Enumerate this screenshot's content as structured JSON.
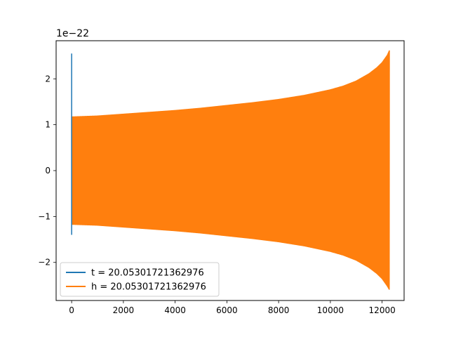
{
  "chart_data": {
    "type": "line",
    "title": "",
    "xlabel": "",
    "ylabel": "",
    "y_scale_label": "1e−22",
    "xlim": [
      -600,
      12850
    ],
    "ylim": [
      -2.83,
      2.83
    ],
    "x_ticks": [
      0,
      2000,
      4000,
      6000,
      8000,
      10000,
      12000
    ],
    "x_tick_labels": [
      "0",
      "2000",
      "4000",
      "6000",
      "8000",
      "10000",
      "12000"
    ],
    "y_ticks": [
      -2,
      -1,
      0,
      1,
      2
    ],
    "y_tick_labels": [
      "−2",
      "−1",
      "0",
      "1",
      "2"
    ],
    "grid": false,
    "legend_position": "lower-left",
    "series": [
      {
        "name": "t = 20.05301721362976",
        "color": "#1f77b4",
        "segments": [
          {
            "x": [
              0,
              0
            ],
            "y": [
              -1.4,
              2.55
            ]
          }
        ]
      },
      {
        "name": "h = 20.05301721362976",
        "color": "#ff7f0e",
        "envelope": {
          "x": [
            0,
            1000,
            2000,
            3000,
            4000,
            5000,
            6000,
            7000,
            8000,
            9000,
            10000,
            10500,
            11000,
            11500,
            11800,
            12000,
            12200,
            12280
          ],
          "upper": [
            1.18,
            1.2,
            1.24,
            1.28,
            1.32,
            1.37,
            1.43,
            1.49,
            1.56,
            1.65,
            1.77,
            1.85,
            1.96,
            2.12,
            2.25,
            2.36,
            2.52,
            2.62
          ],
          "lower": [
            -1.18,
            -1.2,
            -1.24,
            -1.28,
            -1.32,
            -1.37,
            -1.43,
            -1.49,
            -1.56,
            -1.65,
            -1.77,
            -1.85,
            -1.96,
            -2.12,
            -2.25,
            -2.36,
            -2.52,
            -2.6
          ]
        }
      }
    ]
  }
}
